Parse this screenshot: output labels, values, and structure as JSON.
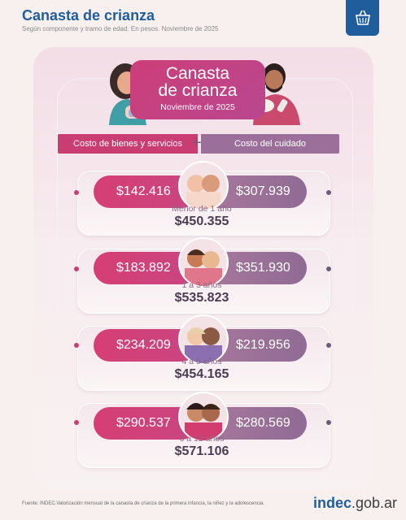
{
  "header": {
    "title": "Canasta de crianza",
    "subtitle": "Según componente y tramo de edad. En pesos. Noviembre de 2025",
    "logo_icon": "basket-icon"
  },
  "hero": {
    "title_line1": "Canasta",
    "title_line2": "de crianza",
    "date": "Noviembre de 2025"
  },
  "bands": {
    "left": "Costo de bienes y servicios",
    "right": "Costo del cuidado",
    "operator": "+"
  },
  "rows": [
    {
      "age": "Menor de 1 año",
      "goods": "$142.416",
      "care": "$307.939",
      "total": "$450.355"
    },
    {
      "age": "1 a 3 años",
      "goods": "$183.892",
      "care": "$351.930",
      "total": "$535.823"
    },
    {
      "age": "4 a 5 años",
      "goods": "$234.209",
      "care": "$219.956",
      "total": "$454.165"
    },
    {
      "age": "6 a 12 años",
      "goods": "$290.537",
      "care": "$280.569",
      "total": "$571.106"
    }
  ],
  "colors": {
    "brand": "#1f5d9c",
    "goods": "#d63e73",
    "care": "#9b6f9a",
    "bg": "#f7f0ee"
  },
  "footer": {
    "source": "Fuente: INDEC.Valorización mensual de la canasta de crianza de la primera infancia, la niñez y la adolescencia.",
    "logo_main": "indec",
    "logo_suffix": ".gob.ar"
  }
}
